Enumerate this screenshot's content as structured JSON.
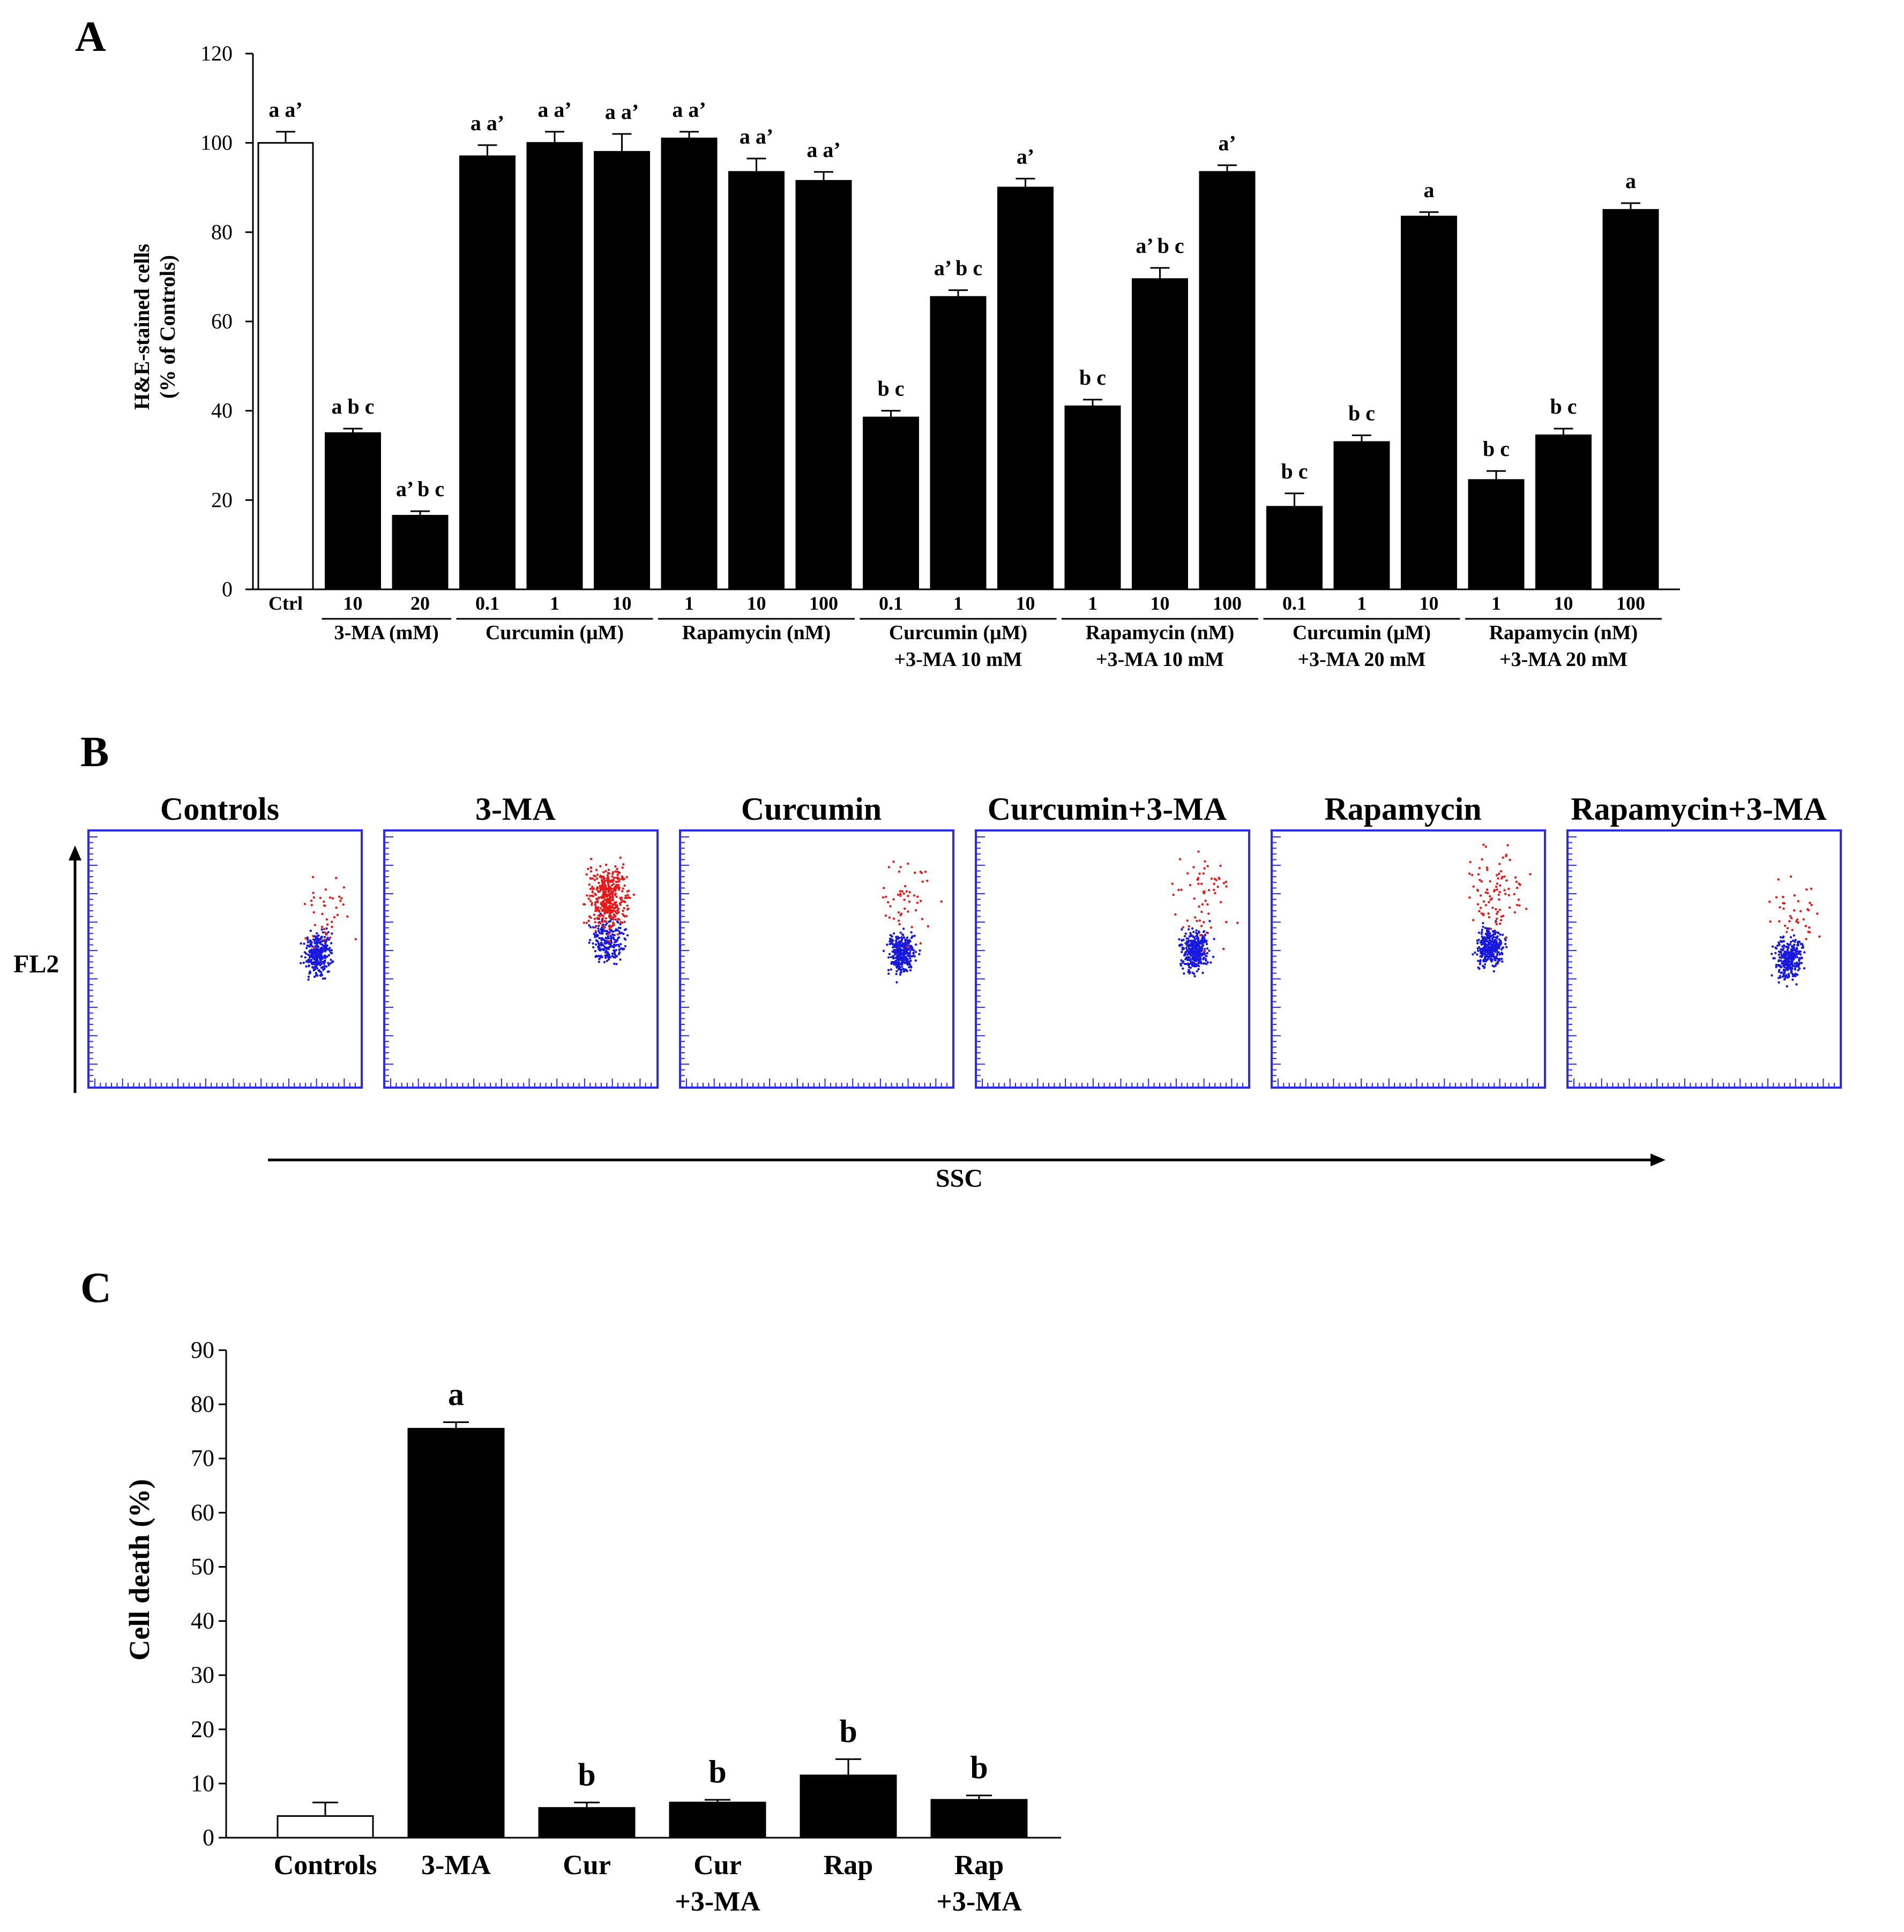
{
  "panel_letters": {
    "a": "A",
    "b": "B",
    "c": "C"
  },
  "chart_data": [
    {
      "panel": "A",
      "type": "bar",
      "ylabel_line1": "H&E-stained cells",
      "ylabel_line2": "(% of Controls)",
      "ylim": [
        0,
        120
      ],
      "yticks": [
        0,
        20,
        40,
        60,
        80,
        100,
        120
      ],
      "bars": [
        {
          "label": "Ctrl",
          "value": 100,
          "err": 2.5,
          "sig": "a a’",
          "fill": "#ffffff"
        },
        {
          "label": "10",
          "value": 35,
          "err": 1,
          "sig": "a b c",
          "fill": "#000000"
        },
        {
          "label": "20",
          "value": 16.5,
          "err": 1,
          "sig": "a’ b c",
          "fill": "#000000"
        },
        {
          "label": "0.1",
          "value": 97,
          "err": 2.5,
          "sig": "a a’",
          "fill": "#000000"
        },
        {
          "label": "1",
          "value": 100,
          "err": 2.5,
          "sig": "a a’",
          "fill": "#000000"
        },
        {
          "label": "10",
          "value": 98,
          "err": 4,
          "sig": "a a’",
          "fill": "#000000"
        },
        {
          "label": "1",
          "value": 101,
          "err": 1.5,
          "sig": "a a’",
          "fill": "#000000"
        },
        {
          "label": "10",
          "value": 93.5,
          "err": 3,
          "sig": "a a’",
          "fill": "#000000"
        },
        {
          "label": "100",
          "value": 91.5,
          "err": 2,
          "sig": "a a’",
          "fill": "#000000"
        },
        {
          "label": "0.1",
          "value": 38.5,
          "err": 1.5,
          "sig": "b c",
          "fill": "#000000"
        },
        {
          "label": "1",
          "value": 65.5,
          "err": 1.5,
          "sig": "a’ b c",
          "fill": "#000000"
        },
        {
          "label": "10",
          "value": 90,
          "err": 2,
          "sig": "a’",
          "fill": "#000000"
        },
        {
          "label": "1",
          "value": 41,
          "err": 1.5,
          "sig": "b c",
          "fill": "#000000"
        },
        {
          "label": "10",
          "value": 69.5,
          "err": 2.5,
          "sig": "a’ b c",
          "fill": "#000000"
        },
        {
          "label": "100",
          "value": 93.5,
          "err": 1.5,
          "sig": "a’",
          "fill": "#000000"
        },
        {
          "label": "0.1",
          "value": 18.5,
          "err": 3,
          "sig": "b c",
          "fill": "#000000"
        },
        {
          "label": "1",
          "value": 33,
          "err": 1.5,
          "sig": "b c",
          "fill": "#000000"
        },
        {
          "label": "10",
          "value": 83.5,
          "err": 1,
          "sig": "a",
          "fill": "#000000"
        },
        {
          "label": "1",
          "value": 24.5,
          "err": 2,
          "sig": "b c",
          "fill": "#000000"
        },
        {
          "label": "10",
          "value": 34.5,
          "err": 1.5,
          "sig": "b c",
          "fill": "#000000"
        },
        {
          "label": "100",
          "value": 85,
          "err": 1.5,
          "sig": "a",
          "fill": "#000000"
        }
      ],
      "groups": [
        {
          "line1": "3-MA (mM)",
          "line2": "",
          "first": 1,
          "last": 2
        },
        {
          "line1": "Curcumin (μM)",
          "line2": "",
          "first": 3,
          "last": 5
        },
        {
          "line1": "Rapamycin (nM)",
          "line2": "",
          "first": 6,
          "last": 8
        },
        {
          "line1": "Curcumin (μM)",
          "line2": "+3-MA 10 mM",
          "first": 9,
          "last": 11
        },
        {
          "line1": "Rapamycin (nM)",
          "line2": "+3-MA 10 mM",
          "first": 12,
          "last": 14
        },
        {
          "line1": "Curcumin (μM)",
          "line2": "+3-MA 20 mM",
          "first": 15,
          "last": 17
        },
        {
          "line1": "Rapamycin (nM)",
          "line2": "+3-MA 20 mM",
          "first": 18,
          "last": 20
        }
      ]
    },
    {
      "panel": "B",
      "type": "scatter",
      "ylabel": "FL2",
      "xlabel": "SSC",
      "plots": [
        {
          "title": "Controls",
          "red": 40,
          "blue": 300,
          "red_cx": 0.86,
          "red_cy": 0.3,
          "red_spread": 0.06,
          "blue_cx": 0.84,
          "blue_cy": 0.48,
          "blue_spread": 0.03
        },
        {
          "title": "3-MA",
          "red": 420,
          "blue": 220,
          "red_cx": 0.82,
          "red_cy": 0.26,
          "red_spread": 0.045,
          "blue_cx": 0.82,
          "blue_cy": 0.43,
          "blue_spread": 0.035
        },
        {
          "title": "Curcumin",
          "red": 50,
          "blue": 330,
          "red_cx": 0.83,
          "red_cy": 0.27,
          "red_spread": 0.06,
          "blue_cx": 0.81,
          "blue_cy": 0.48,
          "blue_spread": 0.03
        },
        {
          "title": "Curcumin+3-MA",
          "red": 60,
          "blue": 330,
          "red_cx": 0.83,
          "red_cy": 0.26,
          "red_spread": 0.06,
          "blue_cx": 0.8,
          "blue_cy": 0.47,
          "blue_spread": 0.03
        },
        {
          "title": "Rapamycin",
          "red": 90,
          "blue": 320,
          "red_cx": 0.83,
          "red_cy": 0.24,
          "red_spread": 0.06,
          "blue_cx": 0.8,
          "blue_cy": 0.46,
          "blue_spread": 0.03
        },
        {
          "title": "Rapamycin+3-MA",
          "red": 40,
          "blue": 300,
          "red_cx": 0.83,
          "red_cy": 0.31,
          "red_spread": 0.05,
          "blue_cx": 0.81,
          "blue_cy": 0.5,
          "blue_spread": 0.03
        }
      ]
    },
    {
      "panel": "C",
      "type": "bar",
      "ylabel": "Cell death (%)",
      "ylim": [
        0,
        90
      ],
      "yticks": [
        0,
        10,
        20,
        30,
        40,
        50,
        60,
        70,
        80,
        90
      ],
      "bars": [
        {
          "line1": "Controls",
          "line2": "",
          "value": 4,
          "err": 2.5,
          "sig": "",
          "fill": "#ffffff"
        },
        {
          "line1": "3-MA",
          "line2": "",
          "value": 75.5,
          "err": 1.2,
          "sig": "a",
          "fill": "#000000"
        },
        {
          "line1": "Cur",
          "line2": "",
          "value": 5.5,
          "err": 1,
          "sig": "b",
          "fill": "#000000"
        },
        {
          "line1": "Cur",
          "line2": "+3-MA",
          "value": 6.5,
          "err": 0.5,
          "sig": "b",
          "fill": "#000000"
        },
        {
          "line1": "Rap",
          "line2": "",
          "value": 11.5,
          "err": 3,
          "sig": "b",
          "fill": "#000000"
        },
        {
          "line1": "Rap",
          "line2": "+3-MA",
          "value": 7,
          "err": 0.8,
          "sig": "b",
          "fill": "#000000"
        }
      ]
    }
  ]
}
